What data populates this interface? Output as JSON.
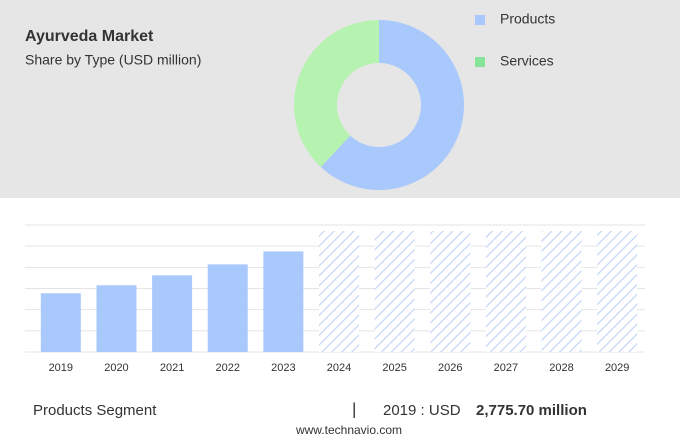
{
  "chart_data": [
    {
      "type": "pie",
      "title": "Ayurveda Market",
      "subtitle": "Share by Type (USD million)",
      "categories": [
        "Products",
        "Services"
      ],
      "values": [
        62,
        38
      ],
      "colors": [
        "#a9c8fc",
        "#b6f2b0"
      ],
      "legend_colors": [
        "#a9c8fc",
        "#86e49a"
      ],
      "donut": true
    },
    {
      "type": "bar",
      "categories": [
        "2019",
        "2020",
        "2021",
        "2022",
        "2023",
        "2024",
        "2025",
        "2026",
        "2027",
        "2028",
        "2029"
      ],
      "values": [
        2775.7,
        3152,
        3623,
        4140,
        4752,
        null,
        null,
        null,
        null,
        null,
        null
      ],
      "color": "#a9c8fc",
      "forecast_color": "#c5d6f6",
      "ylim": [
        0,
        6000
      ],
      "yticks": [
        0,
        1000,
        2000,
        3000,
        4000,
        5000,
        6000
      ],
      "grid": true
    }
  ],
  "footer": {
    "segment": "Products Segment",
    "separator": "|",
    "year_label": "2019 : USD",
    "value_label": "2,775.70 million"
  },
  "source": "www.technavio.com"
}
